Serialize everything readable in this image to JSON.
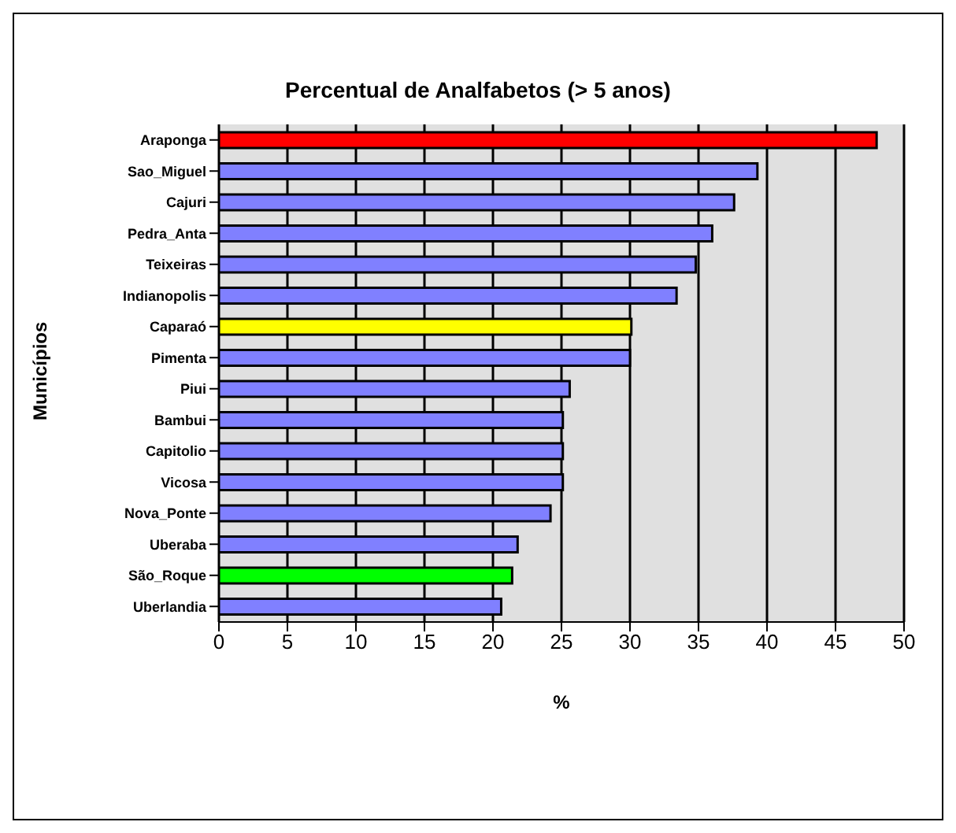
{
  "chart_data": {
    "type": "bar",
    "orientation": "horizontal",
    "title": "Percentual de Analfabetos (> 5 anos)",
    "xlabel": "%",
    "ylabel": "Municípios",
    "categories": [
      "Araponga",
      "Sao_Miguel",
      "Cajuri",
      "Pedra_Anta",
      "Teixeiras",
      "Indianopolis",
      "Caparaó",
      "Pimenta",
      "Piui",
      "Bambui",
      "Capitolio",
      "Vicosa",
      "Nova_Ponte",
      "Uberaba",
      "São_Roque",
      "Uberlandia"
    ],
    "values": [
      48.0,
      39.3,
      37.6,
      36.0,
      34.8,
      33.4,
      30.1,
      30.0,
      25.6,
      25.1,
      25.1,
      25.1,
      24.2,
      21.8,
      21.4,
      20.6
    ],
    "colors": [
      "#ff0000",
      "#8080ff",
      "#8080ff",
      "#8080ff",
      "#8080ff",
      "#8080ff",
      "#ffff00",
      "#8080ff",
      "#8080ff",
      "#8080ff",
      "#8080ff",
      "#8080ff",
      "#8080ff",
      "#8080ff",
      "#00ff00",
      "#8080ff"
    ],
    "xlim": [
      0,
      50
    ],
    "xticks": [
      0,
      5,
      10,
      15,
      20,
      25,
      30,
      35,
      40,
      45,
      50
    ],
    "grid": "x",
    "legend": false
  }
}
